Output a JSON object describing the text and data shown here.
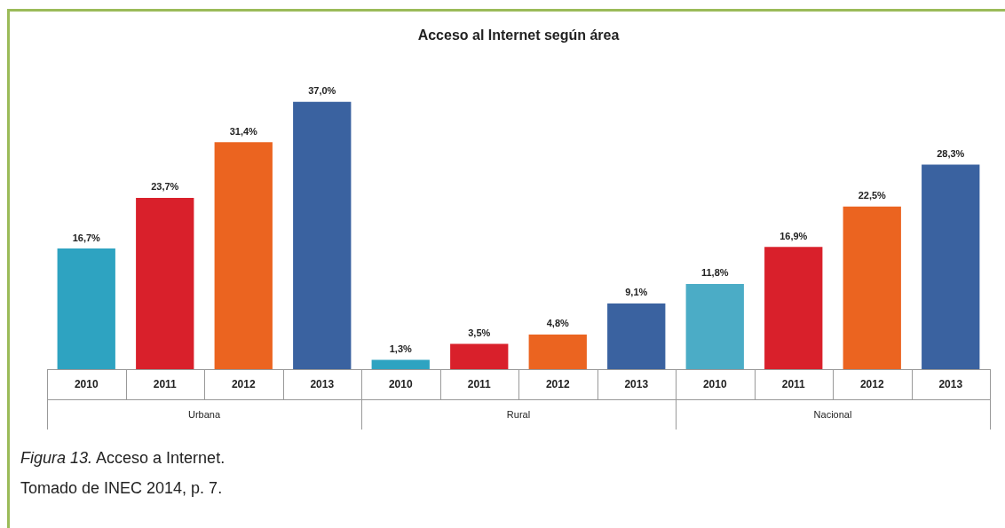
{
  "chart_data": {
    "type": "bar",
    "title": "Acceso al Internet según área",
    "categories": [
      "2010",
      "2011",
      "2012",
      "2013",
      "2010",
      "2011",
      "2012",
      "2013",
      "2010",
      "2011",
      "2012",
      "2013"
    ],
    "values": [
      16.7,
      23.7,
      31.4,
      37.0,
      1.3,
      3.5,
      4.8,
      9.1,
      11.8,
      16.9,
      22.5,
      28.3
    ],
    "colors": [
      "#2ea3c1",
      "#d9202b",
      "#eb6420",
      "#3a62a0",
      "#2ea3c1",
      "#d9202b",
      "#eb6420",
      "#3a62a0",
      "#4bacc6",
      "#d9202b",
      "#eb6420",
      "#3a62a0"
    ],
    "value_labels": [
      "16,7%",
      "23,7%",
      "31,4%",
      "37,0%",
      "1,3%",
      "3,5%",
      "4,8%",
      "9,1%",
      "11,8%",
      "16,9%",
      "22,5%",
      "28,3%"
    ],
    "annotations": [
      "Urbana",
      "Rural",
      "Nacional",
      "Figura 13. Acceso a Internet.",
      "Tomado de INEC 2014, p. 7."
    ]
  }
}
